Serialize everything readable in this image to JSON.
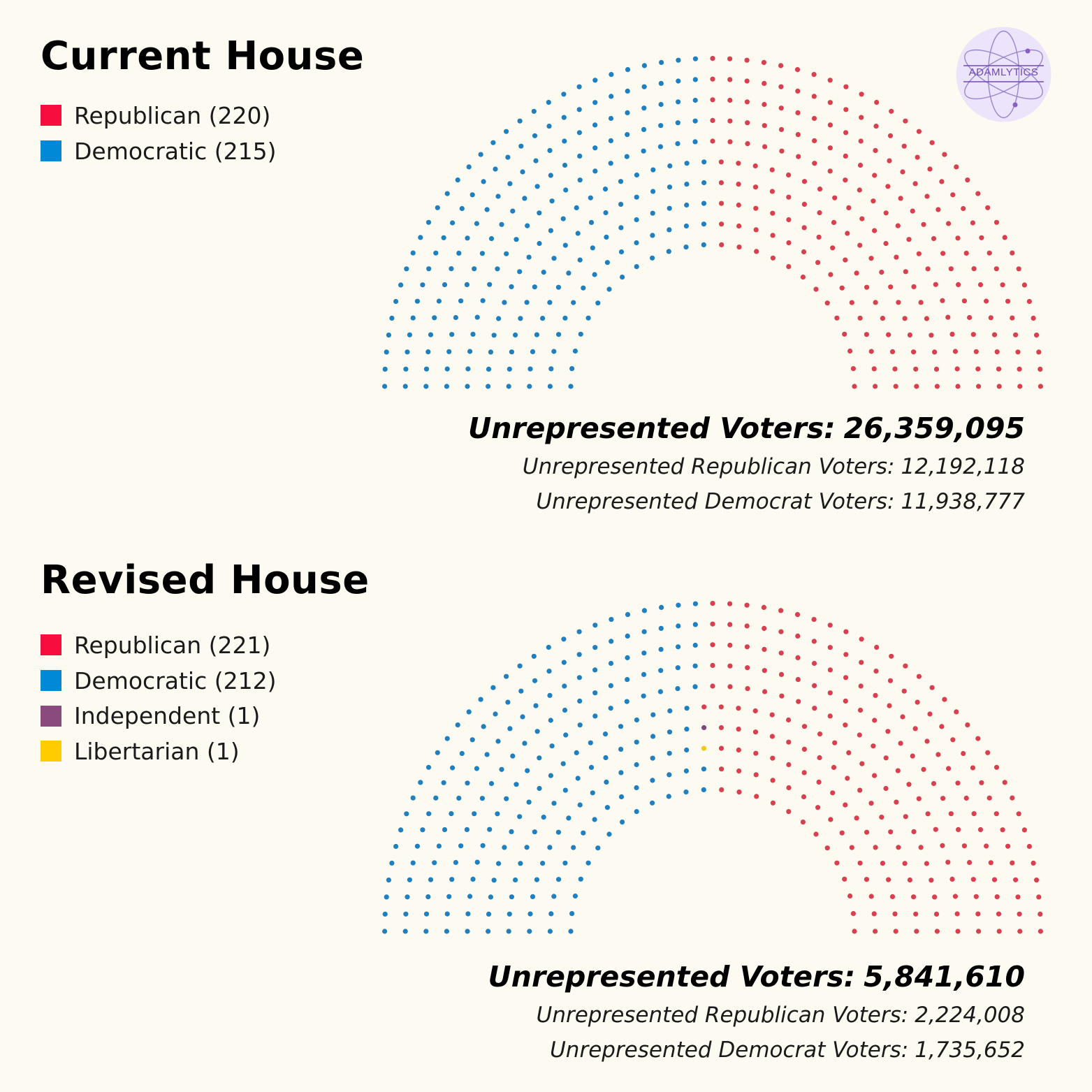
{
  "logo": {
    "text": "ADAMLYTICS"
  },
  "colors": {
    "background": "#fdfbf1",
    "seat_republican": "#d8404f",
    "seat_democratic": "#1f7fbf",
    "seat_independent": "#7d4a78",
    "seat_libertarian": "#f2c81e",
    "swatch_republican": "#f70e3e",
    "swatch_democratic": "#0089d6",
    "swatch_independent": "#8b4a7d",
    "swatch_libertarian": "#ffcc00"
  },
  "current": {
    "title": "Current House",
    "legend": [
      {
        "label": "Republican (220)",
        "color": "#f70e3e"
      },
      {
        "label": "Democratic (215)",
        "color": "#0089d6"
      }
    ],
    "unrepresented": {
      "total_label": "Unrepresented Voters:",
      "total_value": "26,359,095",
      "republican_label": "Unrepresented Republican Voters:",
      "republican_value": "12,192,118",
      "democrat_label": "Unrepresented Democrat Voters:",
      "democrat_value": "11,938,777"
    }
  },
  "revised": {
    "title": "Revised House",
    "legend": [
      {
        "label": "Republican (221)",
        "color": "#f70e3e"
      },
      {
        "label": "Democratic (212)",
        "color": "#0089d6"
      },
      {
        "label": "Independent (1)",
        "color": "#8b4a7d"
      },
      {
        "label": "Libertarian (1)",
        "color": "#ffcc00"
      }
    ],
    "unrepresented": {
      "total_label": "Unrepresented Voters:",
      "total_value": "5,841,610",
      "republican_label": "Unrepresented Republican Voters:",
      "republican_value": "2,224,008",
      "democrat_label": "Unrepresented Democrat Voters:",
      "democrat_value": "1,735,652"
    }
  },
  "chart_data": [
    {
      "type": "parliament",
      "name": "Current House",
      "total_seats": 435,
      "series": [
        {
          "name": "Republican",
          "value": 220,
          "color": "#d8404f"
        },
        {
          "name": "Democratic",
          "value": 215,
          "color": "#1f7fbf"
        }
      ]
    },
    {
      "type": "parliament",
      "name": "Revised House",
      "total_seats": 435,
      "series": [
        {
          "name": "Republican",
          "value": 221,
          "color": "#d8404f"
        },
        {
          "name": "Democratic",
          "value": 212,
          "color": "#1f7fbf"
        },
        {
          "name": "Independent",
          "value": 1,
          "color": "#7d4a78"
        },
        {
          "name": "Libertarian",
          "value": 1,
          "color": "#f2c81e"
        }
      ]
    }
  ]
}
